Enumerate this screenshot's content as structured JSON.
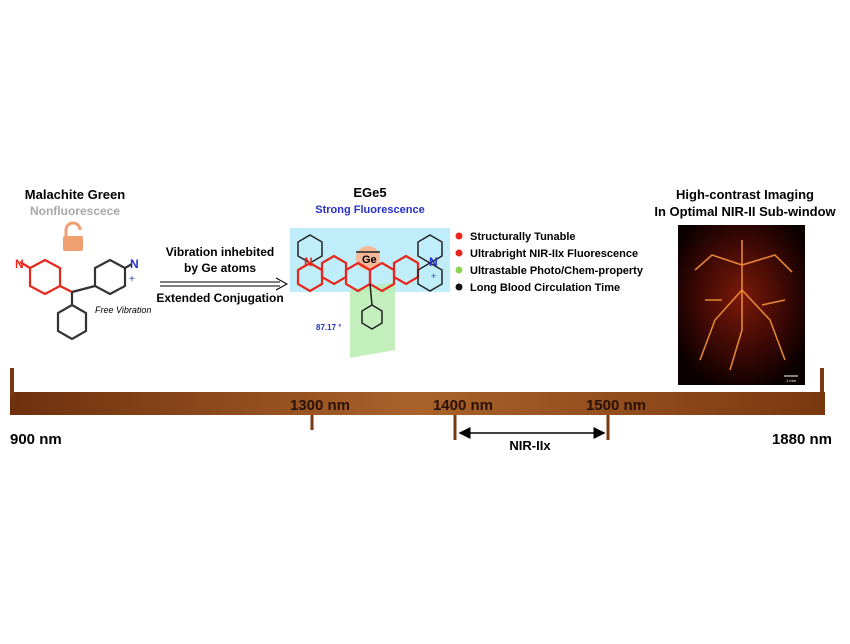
{
  "left": {
    "title": "Malachite Green",
    "subtitle": "Nonfluorescece",
    "n_left": "N",
    "n_right": "N",
    "charge": "+",
    "note": "Free Vibration"
  },
  "arrow": {
    "line1": "Vibration inhebited",
    "line2": "by Ge atoms",
    "below": "Extended Conjugation"
  },
  "center": {
    "title": "EGe5",
    "subtitle": "Strong Fluorescence",
    "ge": "Ge",
    "n_left": "N",
    "n_right": "N",
    "charge": "+",
    "angle": "87.17 °"
  },
  "features": [
    {
      "text": "Structurally Tunable",
      "color": "#e8261c"
    },
    {
      "text": "Ultrabright NIR-IIx Fluorescence",
      "color": "#e8261c"
    },
    {
      "text": "Ultrastable Photo/Chem-property",
      "color": "#8fd14f"
    },
    {
      "text": "Long Blood Circulation Time",
      "color": "#111111"
    }
  ],
  "right": {
    "title": "High-contrast Imaging",
    "subtitle": "In Optimal NIR-II Sub-window",
    "scale": "1 mm"
  },
  "scale": {
    "start": "900 nm",
    "end": "1880 nm",
    "marks": [
      "1300 nm",
      "1400 nm",
      "1500 nm"
    ],
    "window": "NIR-IIx"
  }
}
